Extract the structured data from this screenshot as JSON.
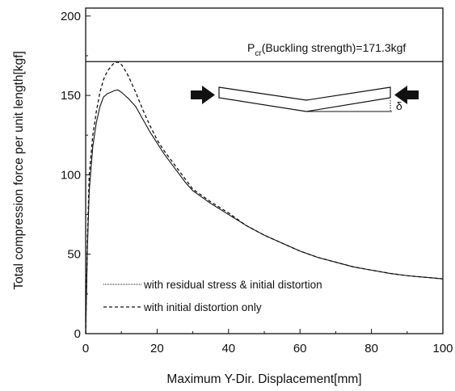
{
  "chart_data": {
    "type": "line",
    "title": "",
    "xlabel": "Maximum Y-Dir. Displacement[mm]",
    "ylabel": "Total compression force per unit length[kgf]",
    "xlim": [
      0,
      100
    ],
    "ylim": [
      0,
      205
    ],
    "xticks": [
      0,
      20,
      40,
      60,
      80,
      100
    ],
    "yticks": [
      0,
      50,
      100,
      150,
      200
    ],
    "grid": false,
    "legend_placement": "bottom-left",
    "buckling_line": {
      "value": 171.3,
      "label_main": "P",
      "label_sub": "cr",
      "label_rest": "(Buckling strength)=171.3kgf"
    },
    "inset": {
      "delta_label": "δ"
    },
    "series": [
      {
        "name": "with residual stress & initial distortion",
        "style": "solid",
        "x": [
          0,
          0.5,
          1,
          2,
          3,
          4,
          5,
          6,
          7,
          8,
          9,
          10,
          11,
          12,
          14,
          16,
          18,
          20,
          22,
          25,
          28,
          30,
          35,
          40,
          45,
          50,
          55,
          60,
          65,
          70,
          75,
          80,
          85,
          90,
          95,
          100
        ],
        "y": [
          0,
          55,
          90,
          118,
          133,
          143,
          149,
          151,
          152,
          153,
          153.5,
          152,
          150,
          148,
          143,
          135,
          127,
          120,
          113,
          104,
          95,
          90,
          82,
          75,
          68,
          62,
          57,
          52,
          48,
          45,
          42,
          40,
          38,
          36.5,
          35.5,
          34.5
        ]
      },
      {
        "name": "with initial distortion only",
        "style": "dashed",
        "x": [
          0,
          0.5,
          1,
          2,
          3,
          4,
          5,
          6,
          7,
          8,
          9,
          10,
          11,
          12,
          14,
          16,
          18,
          20,
          22,
          25,
          28,
          30,
          35,
          40,
          45,
          50,
          55,
          60,
          65,
          70,
          75,
          80,
          85,
          90,
          95,
          100
        ],
        "y": [
          0,
          60,
          100,
          125,
          140,
          152,
          160,
          165,
          168,
          170.5,
          171,
          169.5,
          166,
          162,
          152,
          141,
          131,
          122,
          115,
          106,
          97,
          91,
          83,
          76,
          68,
          62,
          57,
          52,
          48,
          45,
          42,
          40,
          38,
          36.5,
          35.5,
          34.5
        ]
      }
    ]
  }
}
